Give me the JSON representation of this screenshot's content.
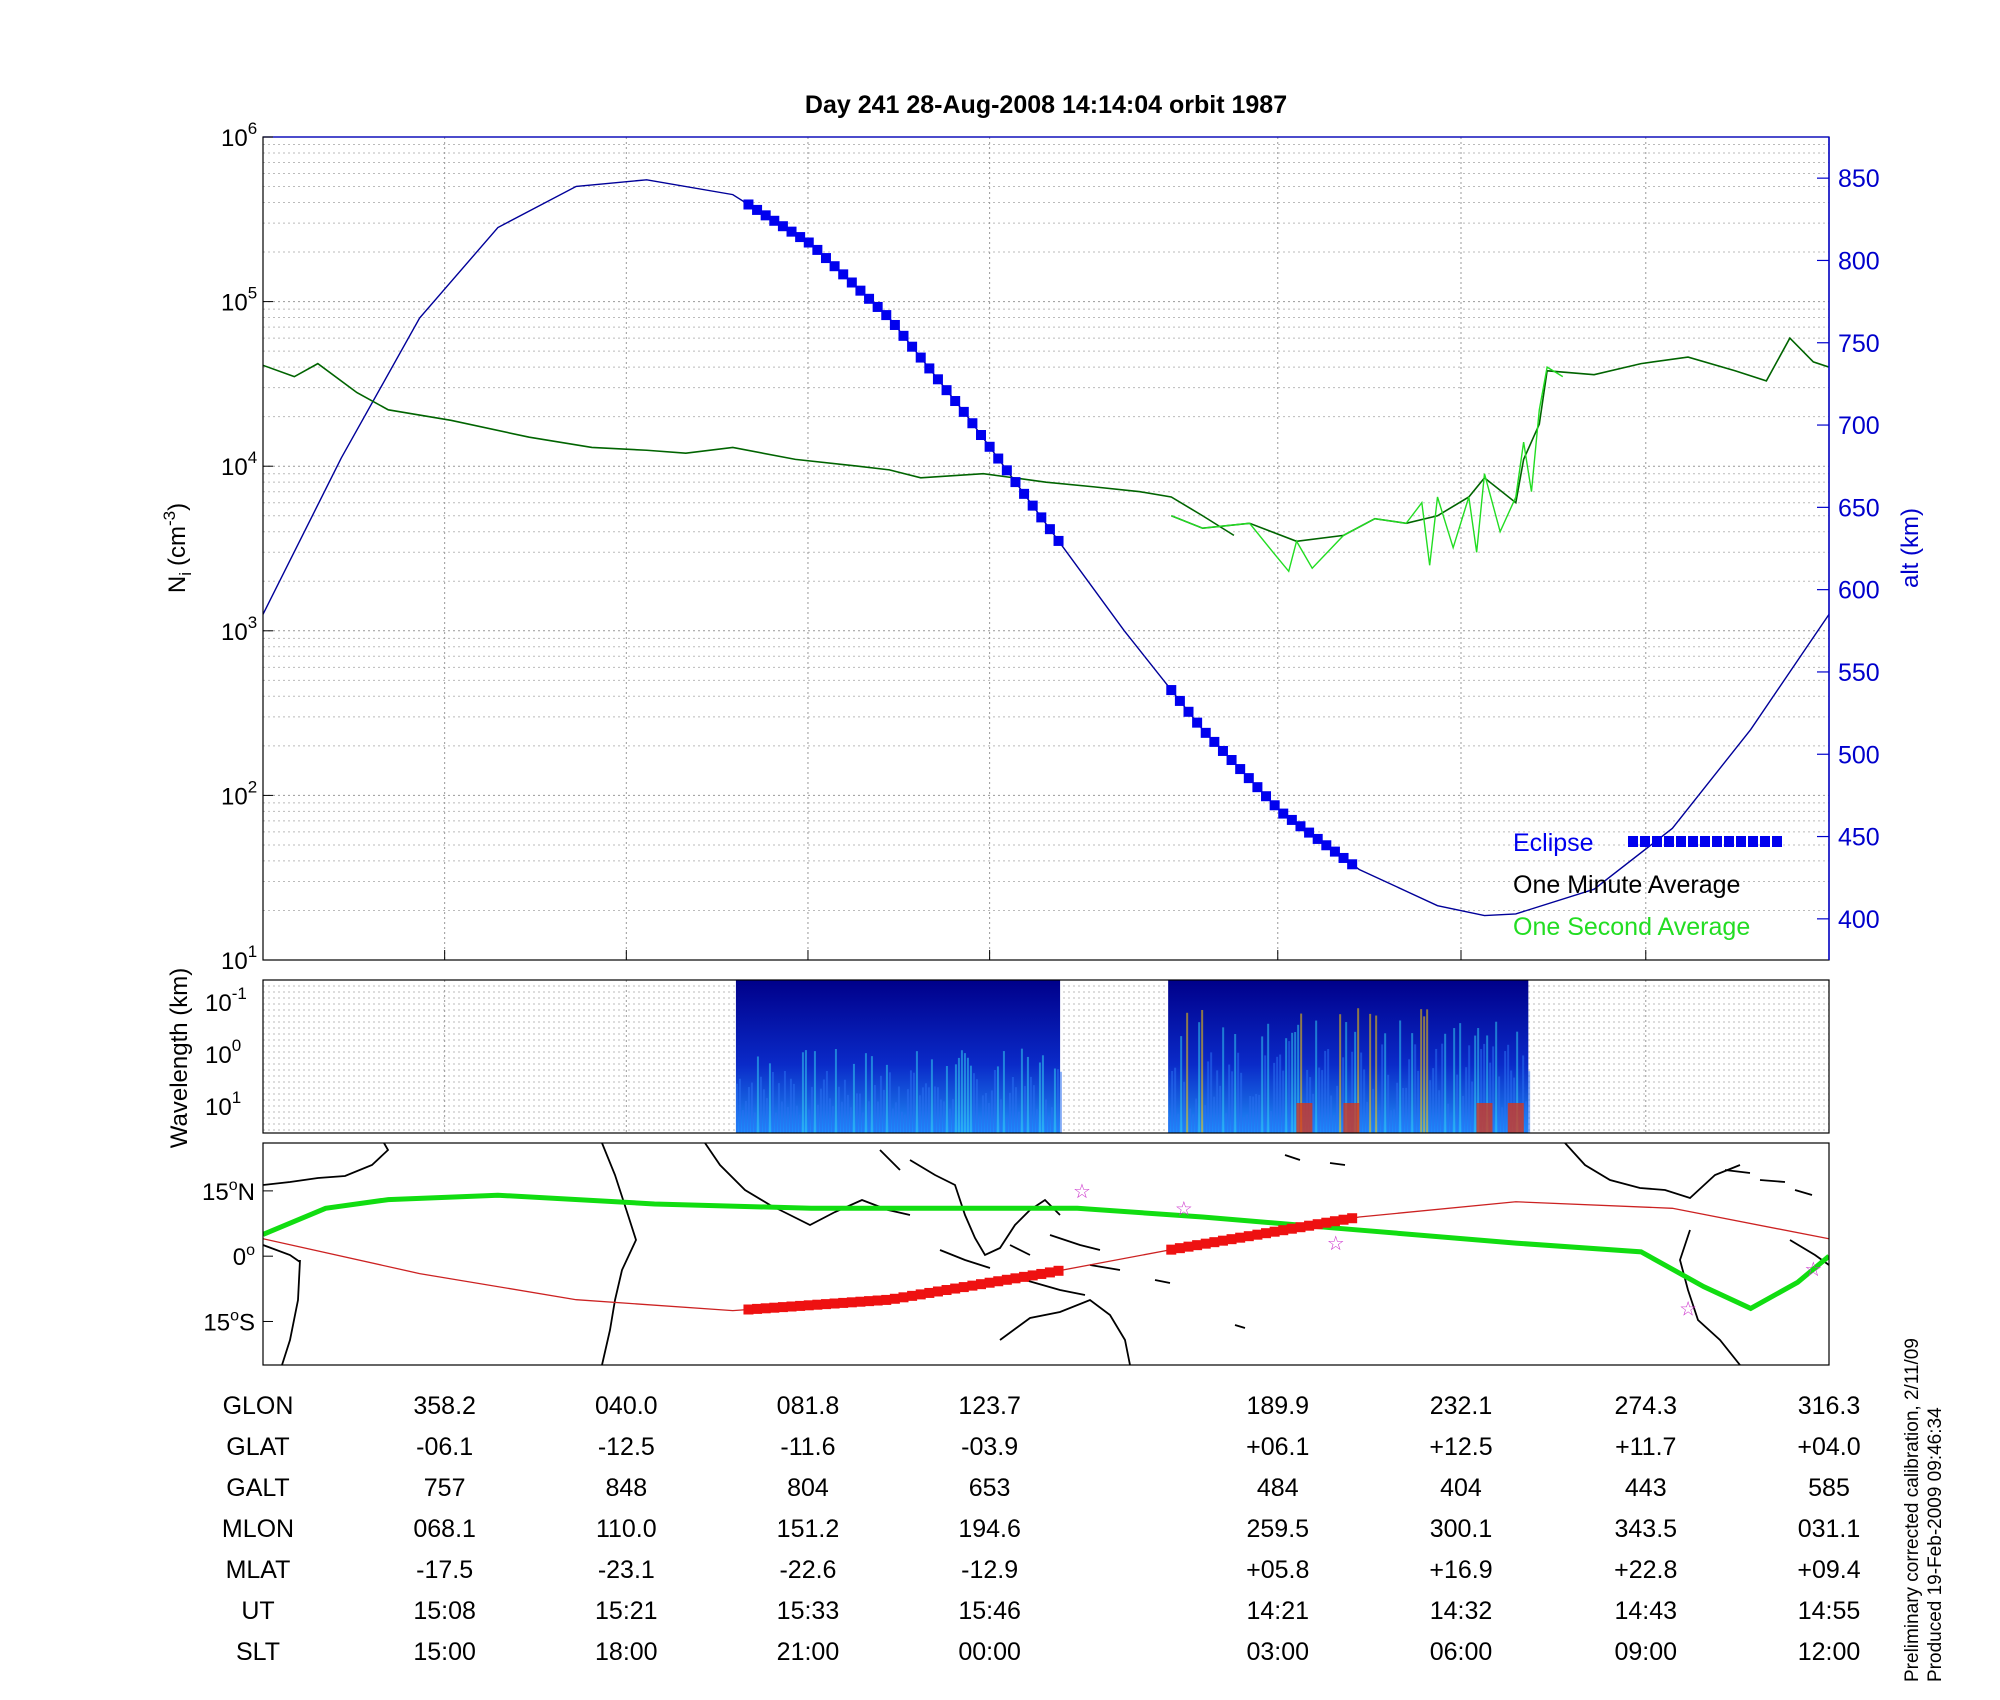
{
  "title": "Day 241  28-Aug-2008 14:14:04   orbit 1987",
  "colors": {
    "eclipse": "#0000ee",
    "altitude_line": "#000099",
    "one_minute": "#006400",
    "one_second": "#22dd22",
    "track_line": "#cc2222",
    "track_eclipse": "#ee1111",
    "star": "#cc33cc"
  },
  "footnote": {
    "line1": "Preliminary corrected calibration, 2/11/09",
    "line2": "Produced 19-Feb-2009 09:46:34"
  },
  "legend": {
    "eclipse": "Eclipse",
    "one_minute": "One Minute Average",
    "one_second": "One Second Average",
    "placement": "lower-right"
  },
  "chart_data": [
    {
      "type": "line",
      "panel": "ion_density",
      "ylabel": "N",
      "ylabel_sub": "i",
      "ylabel_unit": "(cm",
      "ylabel_exp": "-3",
      "ylabel_close": ")",
      "yscale": "log",
      "ylim": [
        10,
        1000000
      ],
      "yticks": [
        {
          "base": "10",
          "exp": "1",
          "value": 10
        },
        {
          "base": "10",
          "exp": "2",
          "value": 100
        },
        {
          "base": "10",
          "exp": "3",
          "value": 1000
        },
        {
          "base": "10",
          "exp": "4",
          "value": 10000
        },
        {
          "base": "10",
          "exp": "5",
          "value": 100000
        },
        {
          "base": "10",
          "exp": "6",
          "value": 1000000
        }
      ],
      "y2label": "alt (km)",
      "y2lim": [
        375,
        875
      ],
      "y2ticks": [
        "400",
        "450",
        "500",
        "550",
        "600",
        "650",
        "700",
        "750",
        "800",
        "850"
      ],
      "x_frac_range": [
        0,
        1
      ],
      "grid": true,
      "series": [
        {
          "name": "One Minute Average",
          "axis": "left",
          "segments": [
            [
              [
                0.0,
                41000
              ],
              [
                0.02,
                35000
              ],
              [
                0.035,
                42000
              ],
              [
                0.06,
                28000
              ],
              [
                0.08,
                22000
              ],
              [
                0.12,
                19000
              ],
              [
                0.17,
                15000
              ],
              [
                0.21,
                13000
              ],
              [
                0.245,
                12500
              ],
              [
                0.27,
                12000
              ],
              [
                0.3,
                13000
              ],
              [
                0.34,
                11000
              ],
              [
                0.38,
                10000
              ],
              [
                0.4,
                9500
              ],
              [
                0.42,
                8500
              ],
              [
                0.46,
                9000
              ],
              [
                0.5,
                8000
              ],
              [
                0.53,
                7500
              ],
              [
                0.56,
                7000
              ],
              [
                0.58,
                6500
              ],
              [
                0.6,
                5000
              ],
              [
                0.62,
                3800
              ]
            ],
            [
              [
                0.58,
                5000
              ],
              [
                0.6,
                4200
              ],
              [
                0.63,
                4500
              ],
              [
                0.66,
                3500
              ],
              [
                0.69,
                3800
              ],
              [
                0.71,
                4800
              ],
              [
                0.73,
                4500
              ],
              [
                0.75,
                5000
              ],
              [
                0.77,
                6500
              ],
              [
                0.78,
                8500
              ],
              [
                0.8,
                6000
              ],
              [
                0.805,
                11000
              ],
              [
                0.815,
                18000
              ],
              [
                0.82,
                38000
              ],
              [
                0.85,
                36000
              ],
              [
                0.88,
                42000
              ],
              [
                0.91,
                46000
              ],
              [
                0.94,
                38000
              ],
              [
                0.96,
                33000
              ],
              [
                0.975,
                60000
              ],
              [
                0.99,
                43000
              ],
              [
                1.0,
                40000
              ]
            ]
          ]
        },
        {
          "name": "One Second Average",
          "axis": "left",
          "segments": [
            [
              [
                0.58,
                5000
              ],
              [
                0.6,
                4200
              ],
              [
                0.63,
                4500
              ],
              [
                0.645,
                3000
              ],
              [
                0.655,
                2300
              ],
              [
                0.66,
                3500
              ],
              [
                0.67,
                2400
              ],
              [
                0.69,
                3800
              ],
              [
                0.71,
                4800
              ],
              [
                0.73,
                4500
              ],
              [
                0.74,
                6000
              ],
              [
                0.745,
                2500
              ],
              [
                0.75,
                6500
              ],
              [
                0.76,
                3200
              ],
              [
                0.77,
                6500
              ],
              [
                0.775,
                3000
              ],
              [
                0.78,
                9000
              ],
              [
                0.79,
                4000
              ],
              [
                0.8,
                6500
              ],
              [
                0.805,
                14000
              ],
              [
                0.81,
                7000
              ],
              [
                0.815,
                22000
              ],
              [
                0.82,
                40000
              ],
              [
                0.83,
                35000
              ]
            ]
          ]
        },
        {
          "name": "altitude",
          "axis": "right",
          "values": [
            [
              0.0,
              585
            ],
            [
              0.05,
              680
            ],
            [
              0.1,
              765
            ],
            [
              0.15,
              820
            ],
            [
              0.2,
              845
            ],
            [
              0.245,
              849
            ],
            [
              0.3,
              840
            ],
            [
              0.35,
              810
            ],
            [
              0.4,
              765
            ],
            [
              0.45,
              705
            ],
            [
              0.5,
              640
            ],
            [
              0.55,
              575
            ],
            [
              0.6,
              515
            ],
            [
              0.65,
              465
            ],
            [
              0.7,
              430
            ],
            [
              0.75,
              408
            ],
            [
              0.78,
              402
            ],
            [
              0.8,
              403
            ],
            [
              0.85,
              418
            ],
            [
              0.9,
              455
            ],
            [
              0.95,
              515
            ],
            [
              1.0,
              585
            ]
          ]
        },
        {
          "name": "Eclipse",
          "axis": "right",
          "segments": [
            [
              0.31,
              0.51
            ],
            [
              0.58,
              0.7
            ]
          ]
        }
      ]
    },
    {
      "type": "heatmap",
      "panel": "spectrogram",
      "ylabel": "Wavelength (km)",
      "yticks": [
        {
          "base": "10",
          "exp": "-1"
        },
        {
          "base": "10",
          "exp": "0"
        },
        {
          "base": "10",
          "exp": "1"
        }
      ],
      "data_windows": [
        [
          0.302,
          0.509
        ],
        [
          0.578,
          0.808
        ]
      ]
    },
    {
      "type": "map",
      "panel": "ground_track",
      "yticks": [
        {
          "deg": "15",
          "hemi": "N",
          "value": 15
        },
        {
          "deg": "0",
          "hemi": "",
          "value": 0
        },
        {
          "deg": "15",
          "hemi": "S",
          "value": -15
        }
      ],
      "ylim": [
        -25,
        26
      ],
      "magnetic_equator": [
        [
          0.0,
          5
        ],
        [
          0.04,
          11
        ],
        [
          0.08,
          13
        ],
        [
          0.15,
          14
        ],
        [
          0.25,
          12
        ],
        [
          0.35,
          11
        ],
        [
          0.45,
          11
        ],
        [
          0.52,
          11
        ],
        [
          0.6,
          9
        ],
        [
          0.7,
          6
        ],
        [
          0.8,
          3
        ],
        [
          0.88,
          1
        ],
        [
          0.92,
          -7
        ],
        [
          0.95,
          -12
        ],
        [
          0.98,
          -6
        ],
        [
          1.0,
          0
        ]
      ],
      "orbit_track": [
        [
          0.0,
          4
        ],
        [
          0.1,
          -4
        ],
        [
          0.2,
          -10
        ],
        [
          0.3,
          -12.5
        ],
        [
          0.4,
          -10
        ],
        [
          0.5,
          -3.9
        ],
        [
          0.58,
          1.5
        ],
        [
          0.7,
          9
        ],
        [
          0.8,
          12.5
        ],
        [
          0.9,
          11
        ],
        [
          1.0,
          4
        ]
      ],
      "eclipse_track_segments": [
        [
          0.31,
          0.51
        ],
        [
          0.58,
          0.7
        ]
      ],
      "stars": [
        [
          0.523,
          15
        ],
        [
          0.588,
          11
        ],
        [
          0.685,
          3
        ],
        [
          0.99,
          -3
        ],
        [
          0.91,
          -12
        ]
      ]
    }
  ],
  "table": {
    "rows": [
      {
        "label": "GLON",
        "values": [
          "358.2",
          "040.0",
          "081.8",
          "123.7",
          "189.9",
          "232.1",
          "274.3",
          "316.3"
        ]
      },
      {
        "label": "GLAT",
        "values": [
          "-06.1",
          "-12.5",
          "-11.6",
          "-03.9",
          "+06.1",
          "+12.5",
          "+11.7",
          "+04.0"
        ]
      },
      {
        "label": "GALT",
        "values": [
          "757",
          "848",
          "804",
          "653",
          "484",
          "404",
          "443",
          "585"
        ]
      },
      {
        "label": "MLON",
        "values": [
          "068.1",
          "110.0",
          "151.2",
          "194.6",
          "259.5",
          "300.1",
          "343.5",
          "031.1"
        ]
      },
      {
        "label": "MLAT",
        "values": [
          "-17.5",
          "-23.1",
          "-22.6",
          "-12.9",
          "+05.8",
          "+16.9",
          "+22.8",
          "+09.4"
        ]
      },
      {
        "label": "UT",
        "values": [
          "15:08",
          "15:21",
          "15:33",
          "15:46",
          "14:21",
          "14:32",
          "14:43",
          "14:55"
        ]
      },
      {
        "label": "SLT",
        "values": [
          "15:00",
          "18:00",
          "21:00",
          "00:00",
          "03:00",
          "06:00",
          "09:00",
          "12:00"
        ]
      }
    ]
  }
}
